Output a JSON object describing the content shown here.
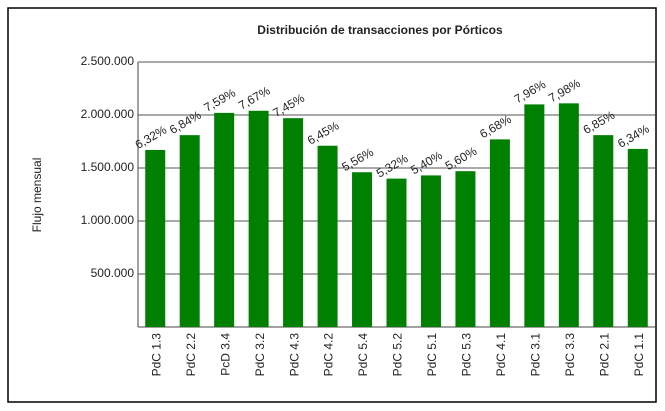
{
  "chart_data": {
    "type": "bar",
    "title": "Distribución de transacciones por Pórticos",
    "y_label": "Flujo mensual",
    "categories": [
      "PdC 1.3",
      "PdC 2.2",
      "PcD 3.4",
      "PdC 3.2",
      "PdC 4.3",
      "PdC 4.2",
      "PdC 5.4",
      "PdC 5.2",
      "PdC 5.1",
      "PdC 5.3",
      "PdC 4.1",
      "PdC 3.1",
      "PdC 3.3",
      "PdC 2.1",
      "PdC 1.1"
    ],
    "values": [
      1670000,
      1810000,
      2020000,
      2040000,
      1970000,
      1710000,
      1460000,
      1400000,
      1430000,
      1470000,
      1770000,
      2100000,
      2110000,
      1810000,
      1680000
    ],
    "data_labels": [
      "6,32%",
      "6,84%",
      "7,59%",
      "7,67%",
      "7,45%",
      "6,45%",
      "5,56%",
      "5,32%",
      "5,40%",
      "5,60%",
      "6,68%",
      "7,96%",
      "7,98%",
      "6,85%",
      "6,34%"
    ],
    "color": "#008000",
    "ylim": [
      0,
      2500000
    ],
    "yticks": [
      {
        "value": 500000,
        "label": "500.000"
      },
      {
        "value": 1000000,
        "label": "1.000.000"
      },
      {
        "value": 1500000,
        "label": "1.500.000"
      },
      {
        "value": 2000000,
        "label": "2.000.000"
      },
      {
        "value": 2500000,
        "label": "2.500.000"
      }
    ],
    "grid": true
  }
}
